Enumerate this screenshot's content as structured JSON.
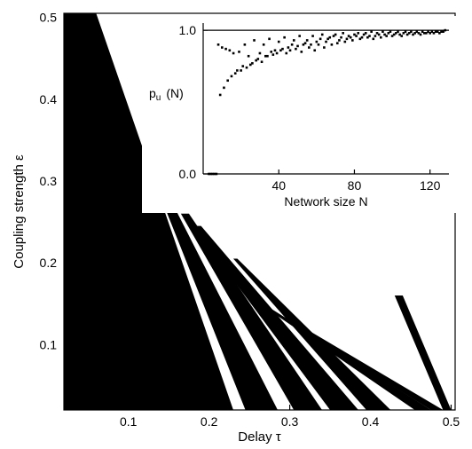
{
  "chart_data": [
    {
      "type": "heatmap",
      "title": "",
      "xlabel": "Delay  τ",
      "ylabel": "Coupling strength  ε",
      "xlim": [
        0.02,
        0.505
      ],
      "ylim": [
        0.02,
        0.505
      ],
      "x_ticks": [
        0.1,
        0.2,
        0.3,
        0.4,
        0.5
      ],
      "y_ticks": [
        0.1,
        0.2,
        0.3,
        0.4,
        0.5
      ],
      "x_tick_labels": [
        "0.1",
        "0.2",
        "0.3",
        "0.4",
        "0.5"
      ],
      "y_tick_labels": [
        "0.1",
        "0.2",
        "0.3",
        "0.4",
        "0.5"
      ],
      "fill_color": "#000000",
      "background_color": "#ffffff",
      "black_regions": [
        {
          "at_y_min": [
            0.02,
            0.23
          ],
          "at_y_max": [
            0.02,
            0.06
          ],
          "y_range": [
            0.02,
            0.505
          ]
        },
        {
          "at_y_min": [
            0.245,
            0.285
          ],
          "at_y_max": [
            0.12,
            0.125
          ],
          "y_range": [
            0.02,
            0.33
          ]
        },
        {
          "at_y_min": [
            0.305,
            0.34
          ],
          "at_y_max": [
            0.165,
            0.175
          ],
          "y_range": [
            0.02,
            0.26
          ]
        },
        {
          "at_y_min": [
            0.35,
            0.385
          ],
          "at_y_max": [
            0.18,
            0.19
          ],
          "y_range": [
            0.02,
            0.245
          ]
        },
        {
          "at_y_min": [
            0.395,
            0.425
          ],
          "at_y_max": [
            0.23,
            0.235
          ],
          "y_range": [
            0.02,
            0.205
          ]
        },
        {
          "at_y_min": [
            0.455,
            0.475
          ],
          "at_y_max": [
            0.27,
            0.275
          ],
          "y_range": [
            0.02,
            0.145
          ]
        },
        {
          "at_y_min": [
            0.475,
            0.49
          ],
          "at_y_max": [
            0.305,
            0.31
          ],
          "y_range": [
            0.02,
            0.125
          ]
        },
        {
          "at_y_min": [
            0.49,
            0.5
          ],
          "at_y_max": [
            0.43,
            0.44
          ],
          "y_range": [
            0.02,
            0.16
          ]
        }
      ]
    },
    {
      "type": "scatter",
      "xlabel": "Network size N",
      "ylabel": "p",
      "ylabel_sub": "u",
      "ylabel_suffix": "(N)",
      "xlim": [
        0,
        130
      ],
      "ylim": [
        0,
        1.05
      ],
      "x_ticks": [
        40,
        80,
        120
      ],
      "y_ticks": [
        0.0,
        1.0
      ],
      "x_tick_labels": [
        "40",
        "80",
        "120"
      ],
      "y_tick_labels": [
        "0.0",
        "1.0"
      ],
      "reference_line_y": 1.0,
      "x": [
        3,
        4,
        5,
        6,
        7,
        8,
        9,
        10,
        11,
        12,
        13,
        14,
        15,
        16,
        17,
        18,
        19,
        20,
        21,
        22,
        23,
        24,
        25,
        26,
        27,
        28,
        29,
        30,
        31,
        32,
        33,
        34,
        35,
        36,
        37,
        38,
        39,
        40,
        41,
        42,
        43,
        44,
        45,
        46,
        47,
        48,
        49,
        50,
        51,
        52,
        53,
        54,
        55,
        56,
        57,
        58,
        59,
        60,
        61,
        62,
        63,
        64,
        65,
        66,
        67,
        68,
        69,
        70,
        71,
        72,
        73,
        74,
        75,
        76,
        77,
        78,
        79,
        80,
        81,
        82,
        83,
        84,
        85,
        86,
        87,
        88,
        89,
        90,
        91,
        92,
        93,
        94,
        95,
        96,
        97,
        98,
        99,
        100,
        101,
        102,
        103,
        104,
        105,
        106,
        107,
        108,
        109,
        110,
        111,
        112,
        113,
        114,
        115,
        116,
        117,
        118,
        119,
        120,
        121,
        122,
        123,
        124,
        125,
        126,
        127,
        128
      ],
      "y": [
        0.0,
        0.0,
        0.0,
        0.0,
        0.0,
        0.9,
        0.55,
        0.88,
        0.6,
        0.87,
        0.65,
        0.86,
        0.68,
        0.84,
        0.7,
        0.72,
        0.85,
        0.72,
        0.75,
        0.9,
        0.74,
        0.82,
        0.76,
        0.77,
        0.93,
        0.79,
        0.8,
        0.84,
        0.78,
        0.9,
        0.82,
        0.82,
        0.94,
        0.85,
        0.83,
        0.86,
        0.84,
        0.92,
        0.86,
        0.87,
        0.95,
        0.84,
        0.88,
        0.86,
        0.9,
        0.93,
        0.87,
        0.89,
        0.96,
        0.85,
        0.9,
        0.91,
        0.93,
        0.88,
        0.9,
        0.96,
        0.86,
        0.92,
        0.9,
        0.94,
        0.97,
        0.88,
        0.92,
        0.94,
        0.95,
        0.9,
        0.96,
        0.97,
        0.91,
        0.93,
        0.95,
        0.98,
        0.92,
        0.94,
        0.96,
        0.95,
        0.93,
        0.97,
        0.96,
        0.98,
        0.94,
        0.95,
        0.97,
        0.98,
        0.95,
        0.96,
        0.99,
        0.94,
        0.96,
        0.98,
        0.97,
        0.95,
        0.99,
        0.97,
        0.96,
        0.98,
        0.99,
        0.96,
        0.97,
        0.98,
        0.99,
        0.97,
        0.96,
        0.98,
        0.99,
        0.97,
        0.98,
        0.99,
        0.97,
        0.98,
        0.99,
        0.98,
        0.97,
        0.99,
        0.98,
        0.98,
        0.99,
        0.98,
        0.99,
        0.98,
        0.99,
        0.99,
        0.98,
        0.99,
        0.99,
        1.0
      ]
    }
  ]
}
